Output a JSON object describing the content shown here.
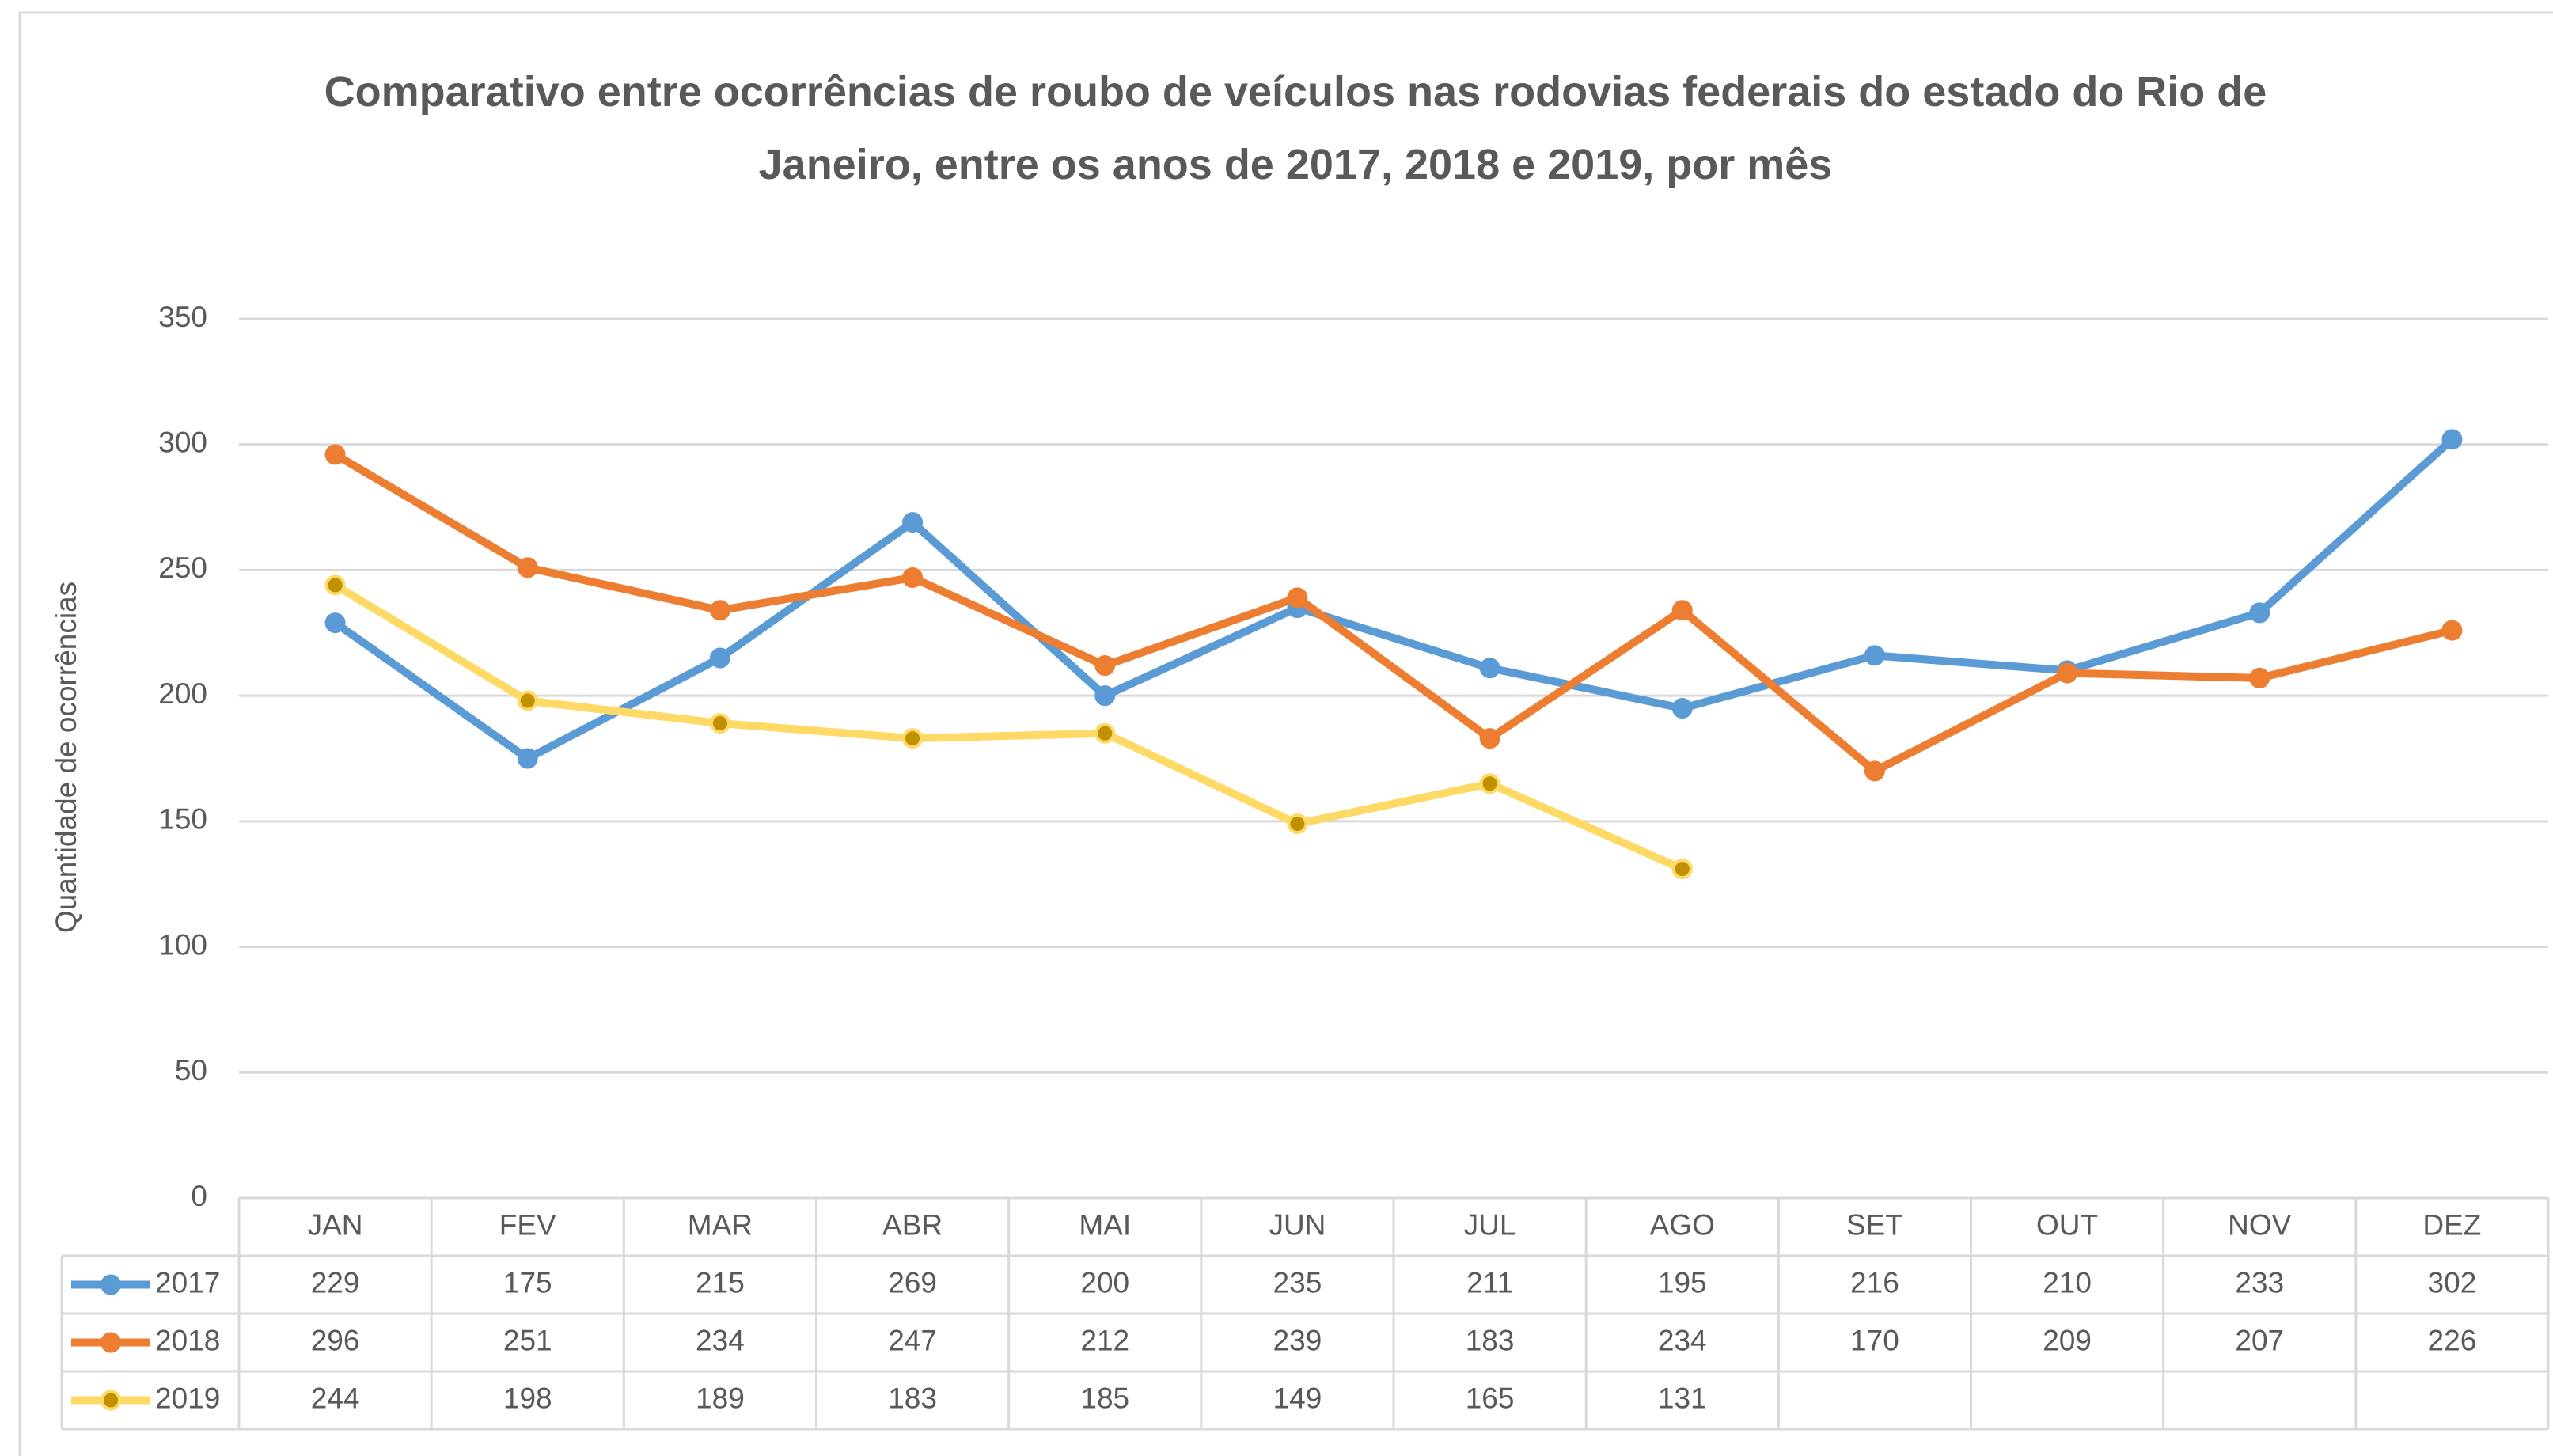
{
  "chart_data": {
    "type": "line",
    "title": "Comparativo entre ocorrências de roubo de veículos nas rodovias federais  do estado do Rio de Janeiro, entre os anos de 2017, 2018 e 2019, por mês",
    "y_label": "Quantidade de ocorrências",
    "categories": [
      "JAN",
      "FEV",
      "MAR",
      "ABR",
      "MAI",
      "JUN",
      "JUL",
      "AGO",
      "SET",
      "OUT",
      "NOV",
      "DEZ"
    ],
    "series": [
      {
        "name": "2017",
        "color": "#5b9bd5",
        "values": [
          229,
          175,
          215,
          269,
          200,
          235,
          211,
          195,
          216,
          210,
          233,
          302
        ]
      },
      {
        "name": "2018",
        "color": "#ed7d31",
        "values": [
          296,
          251,
          234,
          247,
          212,
          239,
          183,
          234,
          170,
          209,
          207,
          226
        ]
      },
      {
        "name": "2019",
        "color": "#ffd966",
        "values": [
          244,
          198,
          189,
          183,
          185,
          149,
          165,
          131,
          null,
          null,
          null,
          null
        ]
      }
    ],
    "ylim": [
      0,
      350
    ],
    "yticks": [
      0,
      50,
      100,
      150,
      200,
      250,
      300,
      350
    ],
    "grid": true,
    "data_table": true
  }
}
